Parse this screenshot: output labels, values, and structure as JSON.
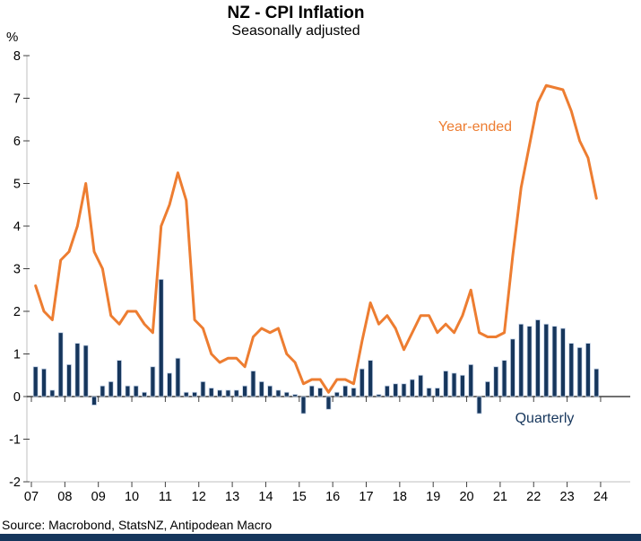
{
  "header": {
    "title": "NZ - CPI Inflation",
    "subtitle": "Seasonally adjusted"
  },
  "chart": {
    "y_axis_unit": "%",
    "annotations": {
      "year_ended": "Year-ended",
      "quarterly": "Quarterly"
    },
    "colors": {
      "line": "#ED7D31",
      "bar": "#16365C",
      "bar_edge": "#C9D6EA",
      "frame": "#BFBFBF",
      "zero_line": "#404040",
      "tick": "#404040",
      "text": "#000000",
      "banner": "#16365C"
    }
  },
  "footer": {
    "source": "Source: Macrobond, StatsNZ, Antipodean Macro"
  },
  "chart_data": {
    "type": "bar+line",
    "title": "NZ - CPI Inflation",
    "subtitle": "Seasonally adjusted",
    "ylabel": "%",
    "ylim": [
      -2,
      8
    ],
    "y_ticks": [
      8,
      7,
      6,
      5,
      4,
      3,
      2,
      1,
      0,
      -1,
      -2
    ],
    "x_tick_labels": [
      "07",
      "08",
      "09",
      "10",
      "11",
      "12",
      "13",
      "14",
      "15",
      "16",
      "17",
      "18",
      "19",
      "20",
      "21",
      "22",
      "23",
      "24"
    ],
    "grid": false,
    "legend_position": "inline-annotations",
    "x": [
      "2007Q1",
      "2007Q2",
      "2007Q3",
      "2007Q4",
      "2008Q1",
      "2008Q2",
      "2008Q3",
      "2008Q4",
      "2009Q1",
      "2009Q2",
      "2009Q3",
      "2009Q4",
      "2010Q1",
      "2010Q2",
      "2010Q3",
      "2010Q4",
      "2011Q1",
      "2011Q2",
      "2011Q3",
      "2011Q4",
      "2012Q1",
      "2012Q2",
      "2012Q3",
      "2012Q4",
      "2013Q1",
      "2013Q2",
      "2013Q3",
      "2013Q4",
      "2014Q1",
      "2014Q2",
      "2014Q3",
      "2014Q4",
      "2015Q1",
      "2015Q2",
      "2015Q3",
      "2015Q4",
      "2016Q1",
      "2016Q2",
      "2016Q3",
      "2016Q4",
      "2017Q1",
      "2017Q2",
      "2017Q3",
      "2017Q4",
      "2018Q1",
      "2018Q2",
      "2018Q3",
      "2018Q4",
      "2019Q1",
      "2019Q2",
      "2019Q3",
      "2019Q4",
      "2020Q1",
      "2020Q2",
      "2020Q3",
      "2020Q4",
      "2021Q1",
      "2021Q2",
      "2021Q3",
      "2021Q4",
      "2022Q1",
      "2022Q2",
      "2022Q3",
      "2022Q4",
      "2023Q1",
      "2023Q2",
      "2023Q3",
      "2023Q4"
    ],
    "series": [
      {
        "name": "Year-ended",
        "type": "line",
        "color": "#ED7D31",
        "values": [
          2.6,
          2.0,
          1.8,
          3.2,
          3.4,
          4.0,
          5.0,
          3.4,
          3.0,
          1.9,
          1.7,
          2.0,
          2.0,
          1.7,
          1.5,
          4.0,
          4.5,
          5.25,
          4.6,
          1.8,
          1.6,
          1.0,
          0.8,
          0.9,
          0.9,
          0.7,
          1.4,
          1.6,
          1.5,
          1.6,
          1.0,
          0.8,
          0.3,
          0.4,
          0.4,
          0.1,
          0.4,
          0.4,
          0.3,
          1.3,
          2.2,
          1.7,
          1.9,
          1.6,
          1.1,
          1.5,
          1.9,
          1.9,
          1.5,
          1.7,
          1.5,
          1.9,
          2.5,
          1.5,
          1.4,
          1.4,
          1.5,
          3.3,
          4.9,
          5.9,
          6.9,
          7.3,
          7.25,
          7.2,
          6.7,
          6.0,
          5.6,
          4.65
        ]
      },
      {
        "name": "Quarterly",
        "type": "bar",
        "color": "#16365C",
        "values": [
          0.7,
          0.65,
          0.15,
          1.5,
          0.75,
          1.25,
          1.2,
          -0.2,
          0.25,
          0.35,
          0.85,
          0.25,
          0.25,
          0.1,
          0.7,
          2.75,
          0.55,
          0.9,
          0.1,
          0.1,
          0.35,
          0.2,
          0.15,
          0.15,
          0.15,
          0.25,
          0.6,
          0.35,
          0.25,
          0.15,
          0.1,
          0.05,
          -0.4,
          0.25,
          0.2,
          -0.3,
          0.1,
          0.25,
          0.2,
          0.65,
          0.85,
          0.05,
          0.25,
          0.3,
          0.3,
          0.4,
          0.5,
          0.2,
          0.2,
          0.6,
          0.55,
          0.5,
          0.75,
          -0.4,
          0.35,
          0.7,
          0.85,
          1.35,
          1.7,
          1.65,
          1.8,
          1.7,
          1.65,
          1.6,
          1.25,
          1.15,
          1.25,
          0.65
        ]
      }
    ]
  }
}
